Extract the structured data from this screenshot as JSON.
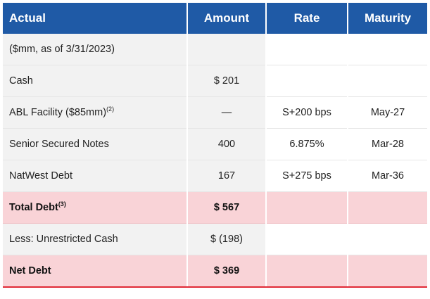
{
  "header": {
    "label": "Actual",
    "amount": "Amount",
    "rate": "Rate",
    "maturity": "Maturity"
  },
  "rows": [
    {
      "label": "($mm, as of 3/31/2023)",
      "sup": "",
      "amount": "",
      "rate": "",
      "maturity": ""
    },
    {
      "label": "Cash",
      "sup": "",
      "amount": "$ 201",
      "rate": "",
      "maturity": ""
    },
    {
      "label": "ABL Facility ($85mm)",
      "sup": "(2)",
      "amount": "—",
      "rate": "S+200 bps",
      "maturity": "May-27"
    },
    {
      "label": "Senior Secured Notes",
      "sup": "",
      "amount": "400",
      "rate": "6.875%",
      "maturity": "Mar-28"
    },
    {
      "label": "NatWest Debt",
      "sup": "",
      "amount": "167",
      "rate": "S+275 bps",
      "maturity": "Mar-36"
    },
    {
      "label": "Total Debt",
      "sup": "(3)",
      "amount": "$ 567",
      "rate": "",
      "maturity": ""
    },
    {
      "label": "Less: Unrestricted Cash",
      "sup": "",
      "amount": "$ (198)",
      "rate": "",
      "maturity": ""
    },
    {
      "label": "Net Debt",
      "sup": "",
      "amount": "$ 369",
      "rate": "",
      "maturity": ""
    }
  ],
  "colors": {
    "header_bg": "#1f5aa6",
    "total_bg": "#f9d3d7",
    "shade_bg": "#f2f2f2",
    "accent_line": "#e02a36"
  }
}
